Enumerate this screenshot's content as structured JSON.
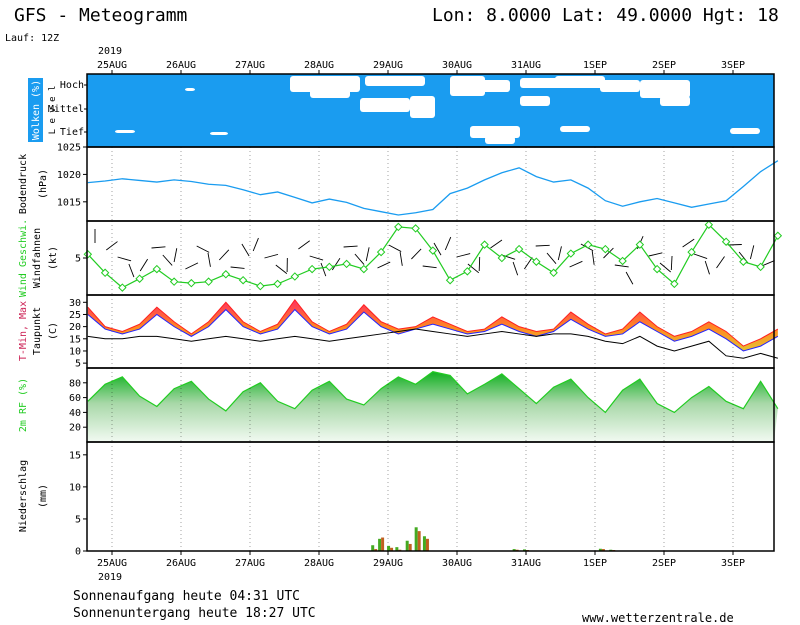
{
  "header": {
    "title": "GFS - Meteogramm",
    "coords": "Lon: 8.0000 Lat: 49.0000 Hgt: 18",
    "run": "Lauf: 12Z"
  },
  "dates": [
    "25AUG",
    "26AUG",
    "27AUG",
    "28AUG",
    "29AUG",
    "30AUG",
    "31AUG",
    "1SEP",
    "2SEP",
    "3SEP"
  ],
  "year": "2019",
  "footer": {
    "sunrise": "Sonnenaufgang heute 04:31 UTC",
    "sunset": "Sonnenuntergang heute 18:27 UTC",
    "site": "www.wetterzentrale.de"
  },
  "colors": {
    "cloud_bg": "#1a9cf0",
    "pressure": "#1a9cf0",
    "wind": "#22cc22",
    "tmax": "#ff2020",
    "tmin": "#2222ff",
    "rh": "#22cc22",
    "precip_green": "#44aa22",
    "precip_brown": "#c06020"
  },
  "chart_data": [
    {
      "type": "heatmap",
      "name": "clouds",
      "ylabel": "Wolken (%)",
      "ylabel2": "L e v e l",
      "levels": [
        "Hoch",
        "Mittel",
        "Tief"
      ],
      "note": "blue = cloud cover, white = clear"
    },
    {
      "type": "line",
      "name": "pressure",
      "ylabel": "Bodendruck",
      "units": "(hPa)",
      "yticks": [
        1015,
        1020,
        1025
      ],
      "ylim": [
        1011.5,
        1025
      ],
      "x": [
        0,
        0.25,
        0.5,
        0.75,
        1,
        1.25,
        1.5,
        1.75,
        2,
        2.25,
        2.5,
        2.75,
        3,
        3.25,
        3.5,
        3.75,
        4,
        4.25,
        4.5,
        4.75,
        5,
        5.25,
        5.5,
        5.75,
        6,
        6.25,
        6.5,
        6.75,
        7,
        7.25,
        7.5,
        7.75,
        8,
        8.25,
        8.5,
        8.75,
        9,
        9.25,
        9.5,
        9.75,
        10
      ],
      "values": [
        1018.5,
        1018.8,
        1019.2,
        1018.9,
        1018.6,
        1019.0,
        1018.7,
        1018.2,
        1018.0,
        1017.2,
        1016.3,
        1016.8,
        1015.8,
        1014.8,
        1015.5,
        1014.9,
        1013.8,
        1013.2,
        1012.6,
        1013.0,
        1013.6,
        1016.5,
        1017.5,
        1019.0,
        1020.3,
        1021.2,
        1019.6,
        1018.6,
        1019.0,
        1017.5,
        1015.2,
        1014.2,
        1015.0,
        1015.6,
        1014.8,
        1014.0,
        1014.6,
        1015.2,
        1017.8,
        1020.5,
        1022.5
      ]
    },
    {
      "type": "line",
      "name": "wind",
      "ylabel": "Wind Geschwi.",
      "ylabel2": "Windfahnen",
      "units": "(kt)",
      "yticks": [
        5
      ],
      "ylim": [
        0,
        10
      ],
      "x": [
        0,
        0.25,
        0.5,
        0.75,
        1,
        1.25,
        1.5,
        1.75,
        2,
        2.25,
        2.5,
        2.75,
        3,
        3.25,
        3.5,
        3.75,
        4,
        4.25,
        4.5,
        4.75,
        5,
        5.25,
        5.5,
        5.75,
        6,
        6.25,
        6.5,
        6.75,
        7,
        7.25,
        7.5,
        7.75,
        8,
        8.25,
        8.5,
        8.75,
        9,
        9.25,
        9.5,
        9.75,
        10
      ],
      "values": [
        5.5,
        3.0,
        1.0,
        2.2,
        3.5,
        1.8,
        1.6,
        1.8,
        2.8,
        2.0,
        1.2,
        1.5,
        2.5,
        3.5,
        3.8,
        4.2,
        3.5,
        5.8,
        9.2,
        9.0,
        6.0,
        2.0,
        3.2,
        6.8,
        5.0,
        6.2,
        4.5,
        3.0,
        5.6,
        6.8,
        6.2,
        4.6,
        6.8,
        3.5,
        1.5,
        5.8,
        9.5,
        7.2,
        4.5,
        3.8,
        8.0
      ]
    },
    {
      "type": "area",
      "name": "temperature",
      "ylabel": "T-Min, Max",
      "ylabel2": "Taupunkt",
      "units": "(C)",
      "yticks": [
        5,
        10,
        15,
        20,
        25,
        30
      ],
      "ylim": [
        3,
        33
      ],
      "x": [
        0,
        0.25,
        0.5,
        0.75,
        1,
        1.25,
        1.5,
        1.75,
        2,
        2.25,
        2.5,
        2.75,
        3,
        3.25,
        3.5,
        3.75,
        4,
        4.25,
        4.5,
        4.75,
        5,
        5.25,
        5.5,
        5.75,
        6,
        6.25,
        6.5,
        6.75,
        7,
        7.25,
        7.5,
        7.75,
        8,
        8.25,
        8.5,
        8.75,
        9,
        9.25,
        9.5,
        9.75,
        10
      ],
      "tmax": [
        28,
        20,
        18,
        21,
        28,
        22,
        17,
        22,
        30,
        22,
        18,
        21,
        31,
        22,
        18,
        21,
        29,
        22,
        19,
        20,
        24,
        21,
        18,
        19,
        24,
        20,
        18,
        19,
        26,
        21,
        17,
        19,
        26,
        20,
        16,
        18,
        22,
        18,
        12,
        15,
        19
      ],
      "tmin": [
        25,
        19,
        17,
        19,
        25,
        20,
        16,
        20,
        27,
        20,
        17,
        19,
        27,
        20,
        17,
        19,
        26,
        20,
        17,
        19,
        21,
        19,
        17,
        18,
        21,
        18,
        16,
        18,
        23,
        19,
        16,
        17,
        22,
        18,
        14,
        16,
        19,
        15,
        10,
        12,
        16
      ],
      "dewpoint": [
        16,
        15,
        15,
        16,
        16,
        15,
        14,
        15,
        16,
        15,
        14,
        15,
        16,
        15,
        14,
        15,
        16,
        17,
        18,
        19,
        18,
        17,
        16,
        17,
        18,
        17,
        16,
        17,
        17,
        16,
        14,
        13,
        16,
        12,
        10,
        12,
        14,
        8,
        7,
        9,
        7
      ]
    },
    {
      "type": "area",
      "name": "humidity",
      "ylabel": "2m RF (%)",
      "yticks": [
        20,
        40,
        60,
        80
      ],
      "ylim": [
        0,
        100
      ],
      "x": [
        0,
        0.25,
        0.5,
        0.75,
        1,
        1.25,
        1.5,
        1.75,
        2,
        2.25,
        2.5,
        2.75,
        3,
        3.25,
        3.5,
        3.75,
        4,
        4.25,
        4.5,
        4.75,
        5,
        5.25,
        5.5,
        5.75,
        6,
        6.25,
        6.5,
        6.75,
        7,
        7.25,
        7.5,
        7.75,
        8,
        8.25,
        8.5,
        8.75,
        9,
        9.25,
        9.5,
        9.75,
        10
      ],
      "values": [
        55,
        78,
        88,
        62,
        48,
        72,
        82,
        58,
        42,
        68,
        80,
        55,
        45,
        70,
        82,
        58,
        50,
        72,
        88,
        78,
        95,
        90,
        65,
        78,
        92,
        72,
        52,
        74,
        85,
        60,
        40,
        70,
        85,
        52,
        40,
        60,
        75,
        55,
        45,
        82,
        45
      ]
    },
    {
      "type": "bar",
      "name": "precipitation",
      "ylabel": "Niederschlag",
      "units": "(mm)",
      "yticks": [
        0,
        5,
        10,
        15
      ],
      "ylim": [
        0,
        17
      ],
      "bars": [
        {
          "x": 4.15,
          "green": 0.9,
          "brown": 0.3
        },
        {
          "x": 4.25,
          "green": 1.9,
          "brown": 2.1
        },
        {
          "x": 4.38,
          "green": 0.8,
          "brown": 0.5
        },
        {
          "x": 4.5,
          "green": 0.6,
          "brown": 0.2
        },
        {
          "x": 4.65,
          "green": 1.6,
          "brown": 1.1
        },
        {
          "x": 4.78,
          "green": 3.7,
          "brown": 3.1
        },
        {
          "x": 4.9,
          "green": 2.3,
          "brown": 1.9
        },
        {
          "x": 6.2,
          "green": 0.3,
          "brown": 0.2
        },
        {
          "x": 6.35,
          "green": 0.25,
          "brown": 0.15
        },
        {
          "x": 7.45,
          "green": 0.35,
          "brown": 0.3
        },
        {
          "x": 7.6,
          "green": 0.2,
          "brown": 0.15
        }
      ]
    }
  ]
}
